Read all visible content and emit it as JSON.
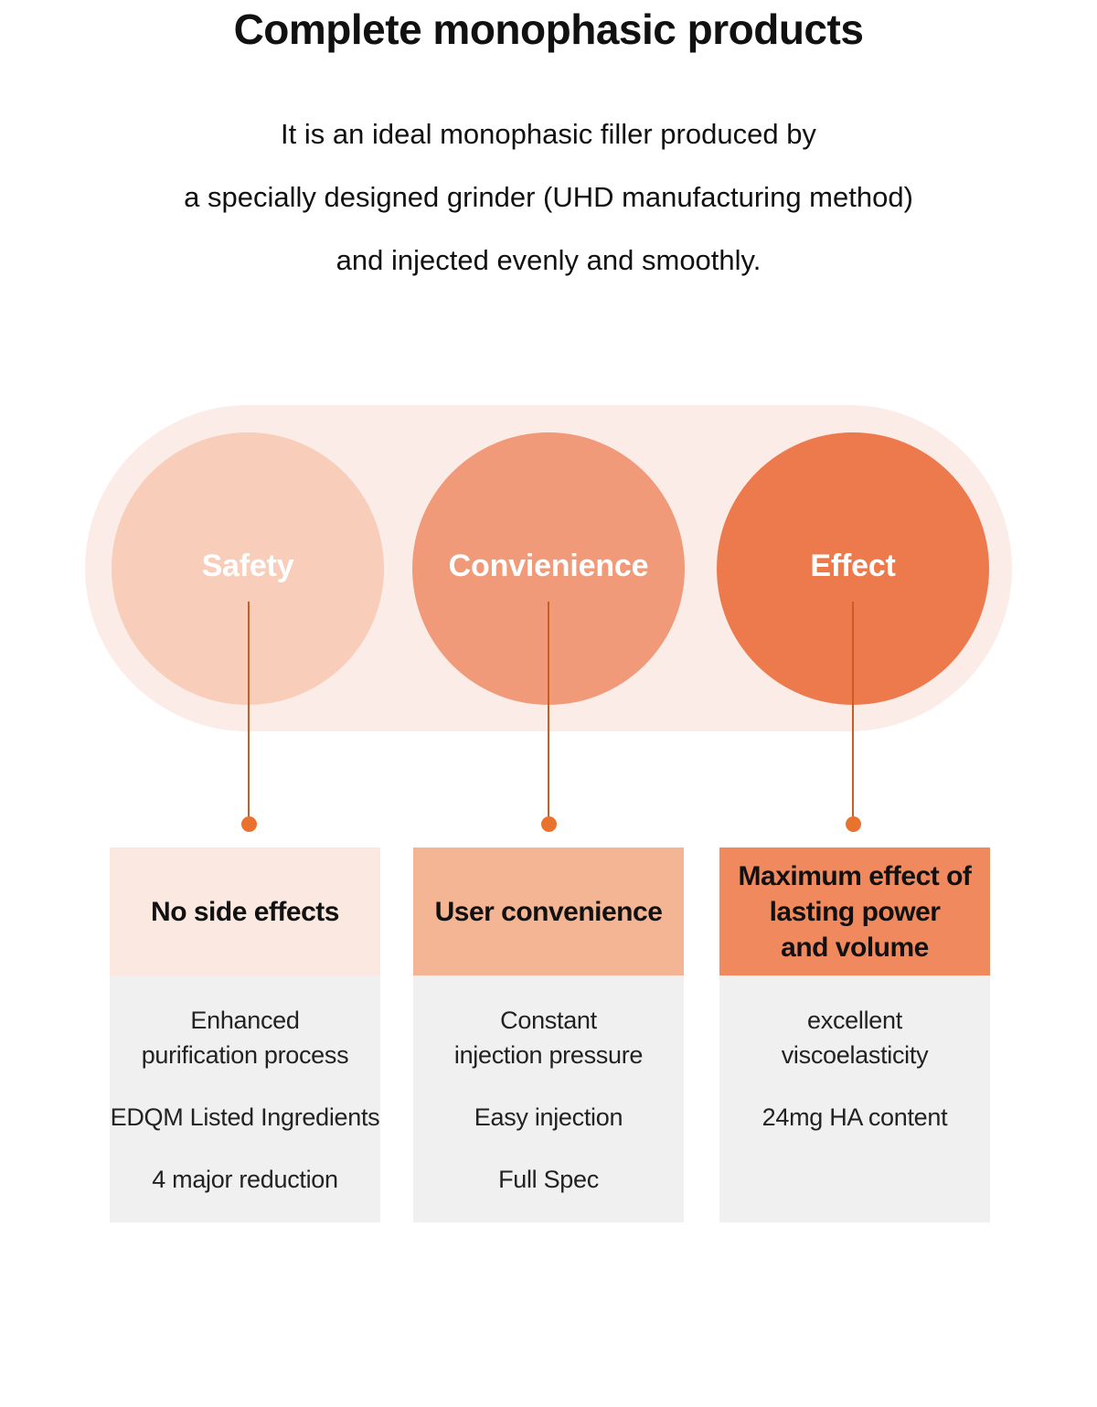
{
  "page": {
    "title": "Complete monophasic products",
    "subtitle": "It is an ideal monophasic filler produced by\na specially designed grinder (UHD manufacturing method)\nand injected evenly and smoothly."
  },
  "diagram": {
    "pill_color": "#FCECE7",
    "connector_line_color": "#C75F22",
    "connector_dot_color": "#E9722F",
    "circles": [
      {
        "label": "Safety",
        "color": "#F8CDBA"
      },
      {
        "label": "Convienience",
        "color": "#F09A79"
      },
      {
        "label": "Effect",
        "color": "#ED7A4C"
      }
    ]
  },
  "cards": [
    {
      "header": "No side effects",
      "header_color": "#FBE9E1",
      "body_color": "#F0F0F0",
      "items": [
        "Enhanced\npurification process",
        "EDQM Listed Ingredients",
        "4 major reduction"
      ]
    },
    {
      "header": "User convenience",
      "header_color": "#F4B594",
      "body_color": "#F0F0F0",
      "items": [
        "Constant\ninjection pressure",
        "Easy injection",
        "Full Spec"
      ]
    },
    {
      "header": "Maximum effect of\nlasting power\nand volume",
      "header_color": "#F08A5E",
      "body_color": "#F0F0F0",
      "items": [
        "excellent\nviscoelasticity",
        "24mg HA content"
      ]
    }
  ]
}
